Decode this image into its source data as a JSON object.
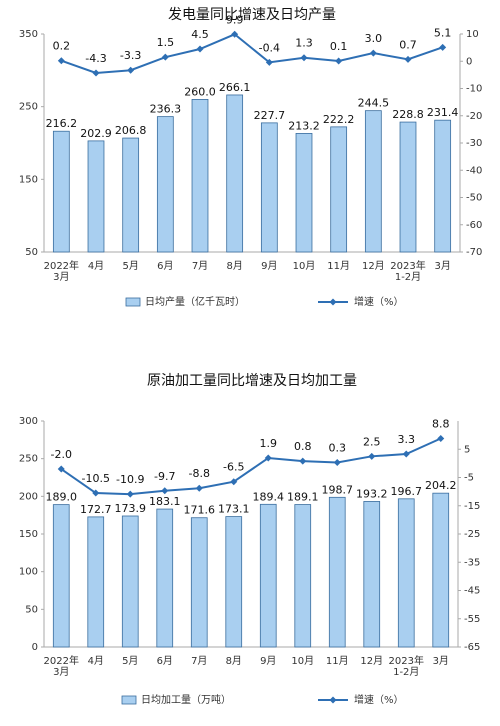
{
  "chart_data": [
    {
      "type": "combo",
      "title": "发电量同比增速及日均产量",
      "categories": [
        "2022年\n3月",
        "4月",
        "5月",
        "6月",
        "7月",
        "8月",
        "9月",
        "10月",
        "11月",
        "12月",
        "2023年\n1-2月",
        "3月"
      ],
      "ylim": [
        50,
        350
      ],
      "yticks": [
        50,
        150,
        250,
        350
      ],
      "y2lim": [
        -70,
        10
      ],
      "y2ticks": [
        -70,
        -60,
        -50,
        -40,
        -30,
        -20,
        -10,
        0,
        10
      ],
      "grid": false,
      "series": [
        {
          "type": "bar",
          "name": "日均产量（亿千瓦时）",
          "color": "#a9cff0",
          "values": [
            216.2,
            202.9,
            206.8,
            236.3,
            260.0,
            266.1,
            227.7,
            213.2,
            222.2,
            244.5,
            228.8,
            231.4
          ],
          "value_labels": [
            "216.2",
            "202.9",
            "206.8",
            "236.3",
            "260.0",
            "266.1",
            "227.7",
            "213.2",
            "222.2",
            "244.5",
            "228.8",
            "231.4"
          ]
        },
        {
          "type": "line",
          "name": "增速（%）",
          "color": "#2e6fb4",
          "axis": "y2",
          "values": [
            0.2,
            -4.3,
            -3.3,
            1.5,
            4.5,
            9.9,
            -0.4,
            1.3,
            0.1,
            3.0,
            0.7,
            5.1
          ],
          "value_labels": [
            "0.2",
            "-4.3",
            "-3.3",
            "1.5",
            "4.5",
            "9.9",
            "-0.4",
            "1.3",
            "0.1",
            "3.0",
            "0.7",
            "5.1"
          ]
        }
      ]
    },
    {
      "type": "combo",
      "title": "原油加工量同比增速及日均加工量",
      "categories": [
        "2022年\n3月",
        "4月",
        "5月",
        "6月",
        "7月",
        "8月",
        "9月",
        "10月",
        "11月",
        "12月",
        "2023年\n1-2月",
        "3月"
      ],
      "ylim": [
        0,
        300
      ],
      "yticks": [
        0,
        50,
        100,
        150,
        200,
        250,
        300
      ],
      "y2lim": [
        -65,
        15
      ],
      "y2ticks": [
        -65,
        -55,
        -45,
        -35,
        -25,
        -15,
        -5,
        5
      ],
      "grid": false,
      "series": [
        {
          "type": "bar",
          "name": "日均加工量（万吨）",
          "color": "#a9cff0",
          "values": [
            189.0,
            172.7,
            173.9,
            183.1,
            171.6,
            173.1,
            189.4,
            189.1,
            198.7,
            193.2,
            196.7,
            204.2
          ],
          "value_labels": [
            "189.0",
            "172.7",
            "173.9",
            "183.1",
            "171.6",
            "173.1",
            "189.4",
            "189.1",
            "198.7",
            "193.2",
            "196.7",
            "204.2"
          ]
        },
        {
          "type": "line",
          "name": "增速（%）",
          "color": "#2e6fb4",
          "axis": "y2",
          "values": [
            -2.0,
            -10.5,
            -10.9,
            -9.7,
            -8.8,
            -6.5,
            1.9,
            0.8,
            0.3,
            2.5,
            3.3,
            8.8
          ],
          "value_labels": [
            "-2.0",
            "-10.5",
            "-10.9",
            "-9.7",
            "-8.8",
            "-6.5",
            "1.9",
            "0.8",
            "0.3",
            "2.5",
            "3.3",
            "8.8"
          ]
        }
      ]
    }
  ]
}
